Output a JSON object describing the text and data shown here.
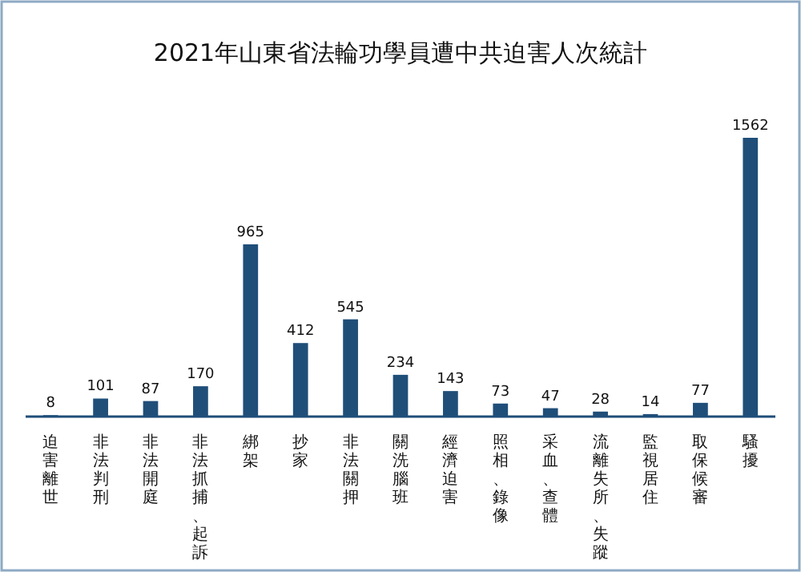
{
  "chart_data": {
    "type": "bar",
    "title": "2021年山東省法輪功學員遭中共迫害人次統計",
    "categories": [
      "迫害離世",
      "非法判刑",
      "非法開庭",
      "非法抓捕、起訴",
      "綁架",
      "抄家",
      "非法關押",
      "關洗腦班",
      "經濟迫害",
      "照相、錄像",
      "采血、查體",
      "流離失所、失蹤",
      "監視居住",
      "取保候審",
      "騷擾"
    ],
    "values": [
      8,
      101,
      87,
      170,
      965,
      412,
      545,
      234,
      143,
      73,
      47,
      28,
      14,
      77,
      1562
    ],
    "color": "#1f4e79",
    "data_labels": true
  }
}
